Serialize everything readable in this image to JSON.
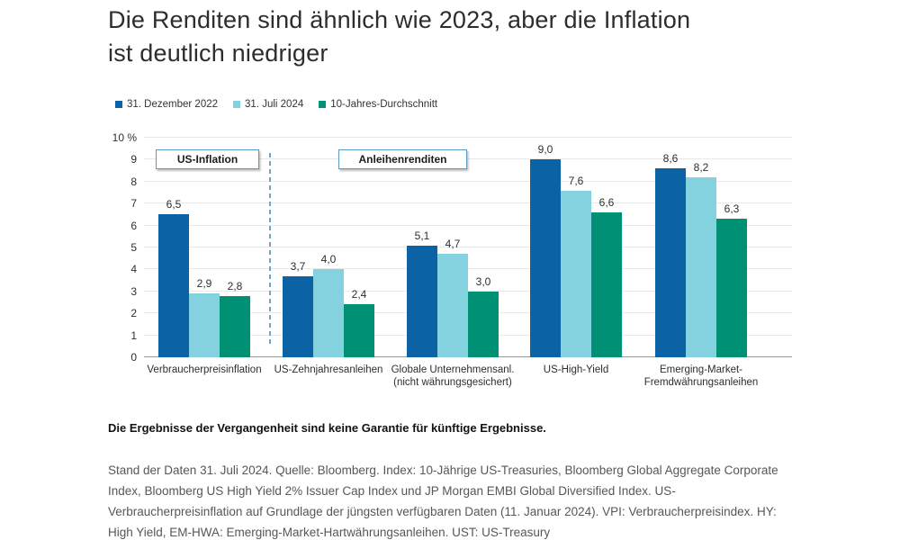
{
  "title": "Die Renditen sind ähnlich wie 2023, aber die Inflation\nist deutlich niedriger",
  "annotations": {
    "inflation_label": "US-Inflation",
    "bonds_label": "Anleihenrenditen"
  },
  "chart_data": {
    "type": "bar",
    "title": "Die Renditen sind ähnlich wie 2023, aber die Inflation ist deutlich niedriger",
    "categories": [
      "Verbraucherpreisinflation",
      "US-Zehnjahresanleihen",
      "Globale Unternehmensanl.\n(nicht währungsgesichert)",
      "US-High-Yield",
      "Emerging-Market-\nFremdwährungsanleihen"
    ],
    "series": [
      {
        "name": "31. Dezember 2022",
        "color": "#0b63a5",
        "values": [
          6.5,
          3.7,
          5.1,
          9.0,
          8.6
        ]
      },
      {
        "name": "31. Juli 2024",
        "color": "#84d2e0",
        "values": [
          2.9,
          4.0,
          4.7,
          7.6,
          8.2
        ]
      },
      {
        "name": "10-Jahres-Durchschnitt",
        "color": "#009175",
        "values": [
          2.8,
          2.4,
          3.0,
          6.6,
          6.3
        ]
      }
    ],
    "ylim": [
      0,
      10
    ],
    "ytick_interval": 1,
    "ymax_label": "10 %",
    "unit": "%",
    "decimal_separator": ",",
    "grid": true,
    "legend_position": "top-left",
    "section_labels": [
      "US-Inflation",
      "Anleihenrenditen"
    ]
  },
  "footer": {
    "disclaimer": "Die Ergebnisse der Vergangenheit sind keine Garantie für künftige Ergebnisse.",
    "source": "Stand der Daten 31. Juli 2024. Quelle: Bloomberg. Index: 10-Jährige US-Treasuries, Bloomberg Global Aggregate Corporate Index, Bloomberg US High Yield 2% Issuer Cap Index und JP Morgan EMBI Global Diversified Index. US-Verbraucherpreisinflation auf Grundlage der jüngsten verfügbaren Daten (11. Januar 2024). VPI: Verbraucherpreisindex. HY: High Yield, EM-HWA: Emerging-Market-Hartwährungsanleihen. UST: US-Treasury"
  }
}
